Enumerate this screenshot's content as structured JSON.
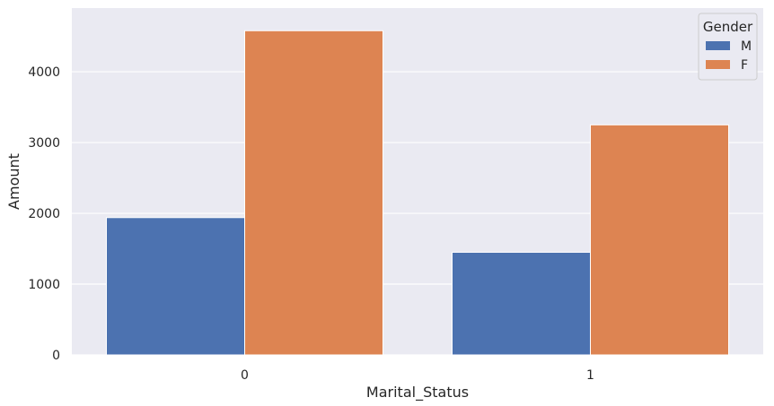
{
  "chart_data": {
    "type": "bar",
    "title": "",
    "xlabel": "Marital_Status",
    "ylabel": "Amount",
    "categories": [
      "0",
      "1"
    ],
    "series": [
      {
        "name": "M",
        "color": "#4c72b0",
        "values": [
          1940,
          1450
        ]
      },
      {
        "name": "F",
        "color": "#dd8452",
        "values": [
          4580,
          3250
        ]
      }
    ],
    "ylim": [
      0,
      4900
    ],
    "yticks": [
      0,
      1000,
      2000,
      3000,
      4000
    ],
    "grid": true,
    "background": "#eaeaf2",
    "legend": {
      "title": "Gender",
      "placement": "top-right"
    }
  }
}
